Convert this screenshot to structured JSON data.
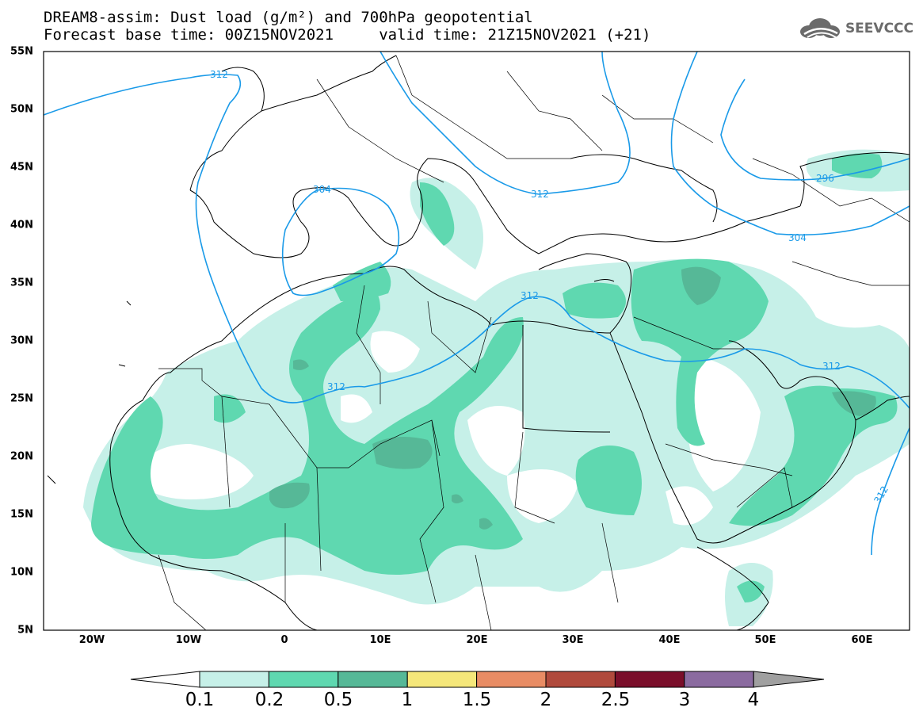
{
  "title": {
    "line1": "DREAM8-assim: Dust load (g/m²) and 700hPa geopotential",
    "line2": "Forecast base time: 00Z15NOV2021     valid time: 21Z15NOV2021 (+21)"
  },
  "logo": {
    "text": "SEEVCCC",
    "icon": "cloud-icon"
  },
  "axes": {
    "lat_labels": [
      "55N",
      "50N",
      "45N",
      "40N",
      "35N",
      "30N",
      "25N",
      "20N",
      "15N",
      "10N",
      "5N"
    ],
    "lon_labels": [
      "20W",
      "10W",
      "0",
      "10E",
      "20E",
      "30E",
      "40E",
      "50E",
      "60E"
    ]
  },
  "contours": {
    "labels": [
      "312",
      "304",
      "312",
      "312",
      "312",
      "312",
      "304",
      "296",
      "312"
    ]
  },
  "colorbar": {
    "labels": [
      "0.1",
      "0.2",
      "0.5",
      "1",
      "1.5",
      "2",
      "2.5",
      "3",
      "4"
    ],
    "colors": [
      "#ffffff",
      "#c6f0e8",
      "#5fd8b0",
      "#56b897",
      "#f5e77a",
      "#e88c64",
      "#b04a3c",
      "#7a0e2a",
      "#8b6ba0",
      "#a0a0a0"
    ]
  },
  "dust_colors": {
    "light": "#c6f0e8",
    "medium": "#5fd8b0",
    "dark": "#56b897"
  },
  "contour_color": "#1a9ae8"
}
